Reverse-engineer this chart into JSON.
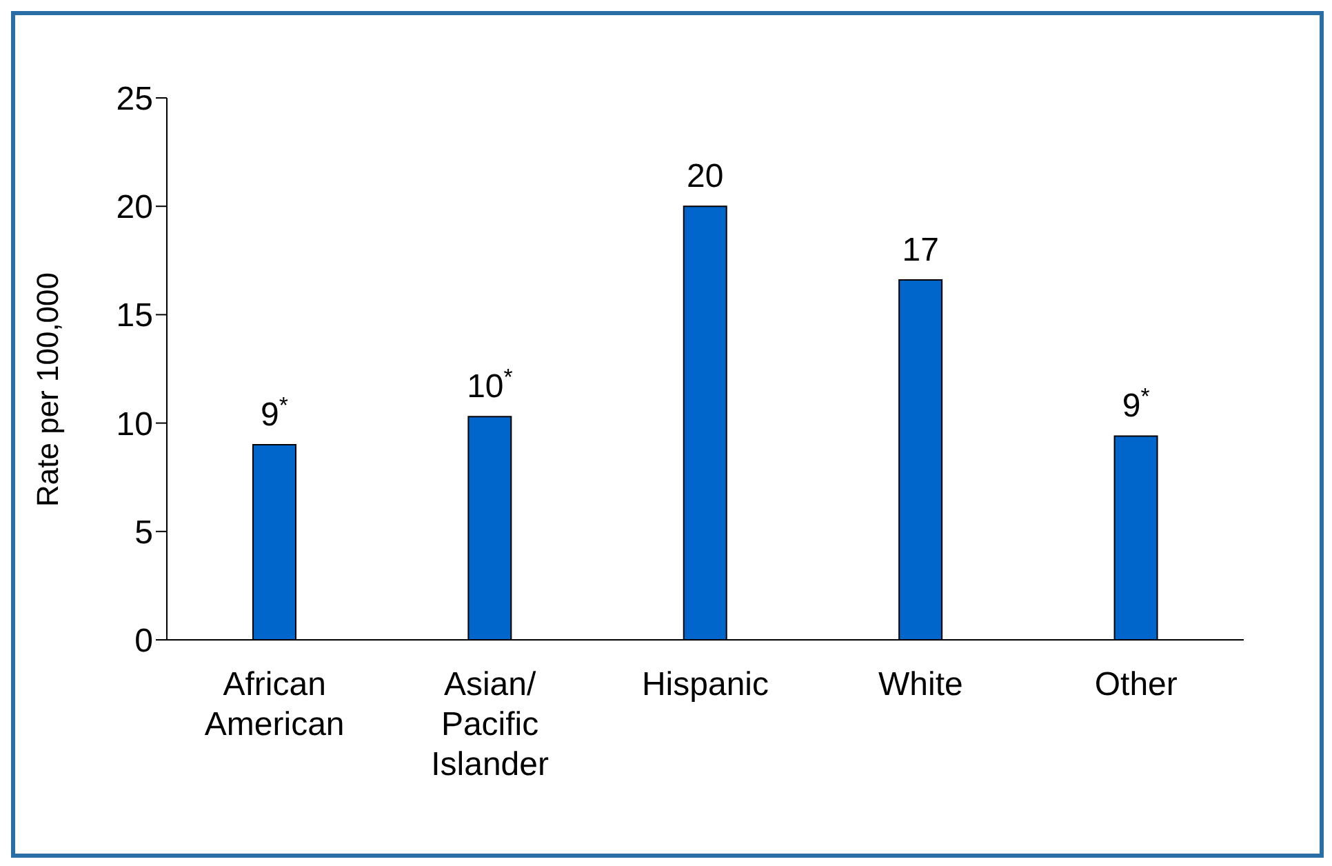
{
  "chart_data": {
    "type": "bar",
    "ylabel": "Rate per 100,000",
    "categories": [
      "African American",
      "Asian/ Pacific Islander",
      "Hispanic",
      "White",
      "Other"
    ],
    "values": [
      9,
      10.3,
      20,
      16.6,
      9.4
    ],
    "value_labels": [
      "9$^{*}$",
      "10$^{*}$",
      "20",
      "17",
      "9$^{*}$"
    ],
    "color": "#0066cc",
    "ylim": [
      0,
      25
    ],
    "yticks": [
      0,
      5,
      10,
      15,
      20,
      25
    ],
    "grid": false,
    "legend": false
  }
}
